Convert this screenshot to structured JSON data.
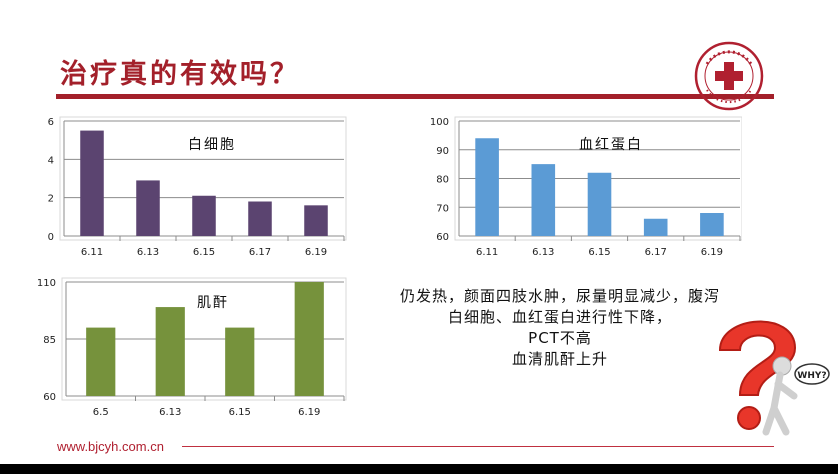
{
  "slide": {
    "title": "治疗真的有效吗？",
    "footer_url": "www.bjcyh.com.cn",
    "note_lines": [
      "仍发热，颜面四肢水肿，尿量明显减少，腹泻",
      "白细胞、血红蛋白进行性下降，",
      "PCT不高",
      "血清肌酐上升"
    ],
    "mascot_label": "WHY?"
  },
  "chart_data": [
    {
      "type": "bar",
      "title": "白细胞",
      "categories": [
        "6.11",
        "6.13",
        "6.15",
        "6.17",
        "6.19"
      ],
      "values": [
        5.5,
        2.9,
        2.1,
        1.8,
        1.6
      ],
      "ylim": [
        0,
        6
      ],
      "yticks": [
        0,
        2,
        4,
        6
      ],
      "color": "#5b4470",
      "grid": true
    },
    {
      "type": "bar",
      "title": "血红蛋白",
      "categories": [
        "6.11",
        "6.13",
        "6.15",
        "6.17",
        "6.19"
      ],
      "values": [
        94,
        85,
        82,
        66,
        68
      ],
      "ylim": [
        60,
        100
      ],
      "yticks": [
        60,
        70,
        80,
        90,
        100
      ],
      "color": "#5b9bd5",
      "grid": true
    },
    {
      "type": "bar",
      "title": "肌酐",
      "categories": [
        "6.5",
        "6.13",
        "6.15",
        "6.19"
      ],
      "values": [
        90,
        99,
        90,
        110
      ],
      "ylim": [
        60,
        110
      ],
      "yticks": [
        60,
        85,
        110
      ],
      "color": "#76923c",
      "grid": true
    }
  ]
}
